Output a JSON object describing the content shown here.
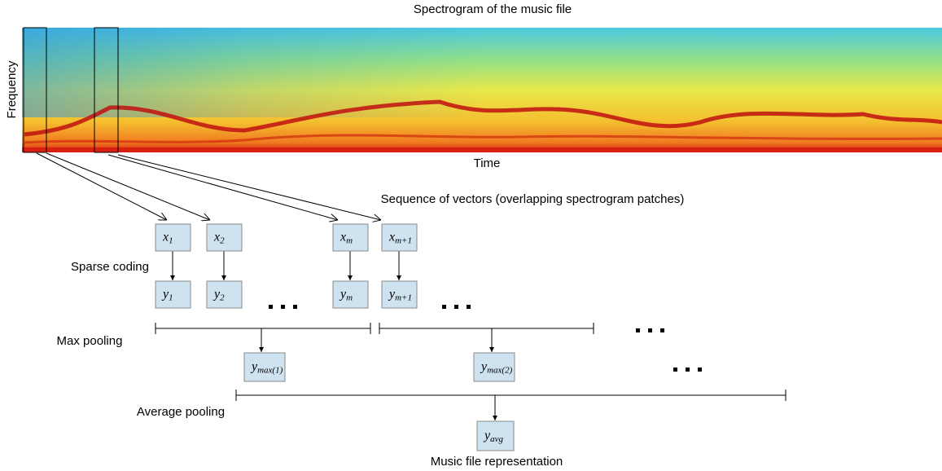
{
  "header": {
    "title": "Spectrogram of the music file",
    "y_label": "Frequency",
    "x_label": "Time"
  },
  "sequence_label": "Sequence of vectors (overlapping spectrogram patches)",
  "stages": {
    "sparse_coding": "Sparse coding",
    "max_pooling": "Max pooling",
    "average_pooling": "Average pooling",
    "output": "Music file representation"
  },
  "nodes": [
    {
      "base": "x",
      "sub": "1"
    },
    {
      "base": "x",
      "sub": "2"
    },
    {
      "base": "x",
      "sub": "m"
    },
    {
      "base": "x",
      "sub": "m+1"
    },
    {
      "base": "y",
      "sub": "1"
    },
    {
      "base": "y",
      "sub": "2"
    },
    {
      "base": "y",
      "sub": "m"
    },
    {
      "base": "y",
      "sub": "m+1"
    },
    {
      "base": "y",
      "sub": "max(1)"
    },
    {
      "base": "y",
      "sub": "max(2)"
    },
    {
      "base": "y",
      "sub": "avg"
    }
  ]
}
